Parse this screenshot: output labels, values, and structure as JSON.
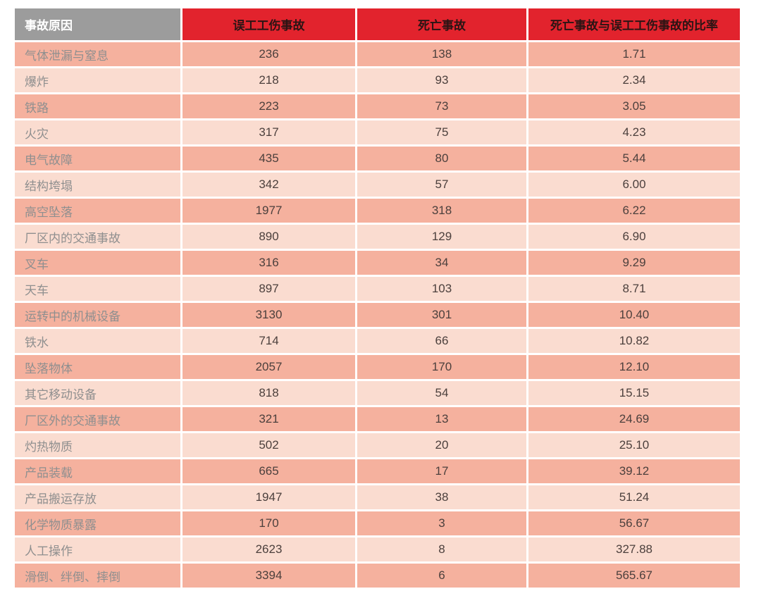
{
  "colors": {
    "header_gray": "#9c9c9c",
    "header_red": "#e2232d",
    "row_dark": "#f5b19e",
    "row_light": "#fadcd0",
    "header_gray_text": "#ffffff",
    "header_red_text": "#2b1414",
    "cause_text": "#8f8f8f",
    "number_text": "#4c403d",
    "page_bg": "#ffffff"
  },
  "table": {
    "columns": [
      "事故原因",
      "误工工伤事故",
      "死亡事故",
      "死亡事故与误工工伤事故的比率"
    ],
    "rows": [
      {
        "cause": "气体泄漏与窒息",
        "lost_time": "236",
        "fatal": "138",
        "ratio": "1.71"
      },
      {
        "cause": "爆炸",
        "lost_time": "218",
        "fatal": "93",
        "ratio": "2.34"
      },
      {
        "cause": "铁路",
        "lost_time": "223",
        "fatal": "73",
        "ratio": "3.05"
      },
      {
        "cause": "火灾",
        "lost_time": "317",
        "fatal": "75",
        "ratio": "4.23"
      },
      {
        "cause": "电气故障",
        "lost_time": "435",
        "fatal": "80",
        "ratio": "5.44"
      },
      {
        "cause": "结构垮塌",
        "lost_time": "342",
        "fatal": "57",
        "ratio": "6.00"
      },
      {
        "cause": "高空坠落",
        "lost_time": "1977",
        "fatal": "318",
        "ratio": "6.22"
      },
      {
        "cause": "厂区内的交通事故",
        "lost_time": "890",
        "fatal": "129",
        "ratio": "6.90"
      },
      {
        "cause": "叉车",
        "lost_time": "316",
        "fatal": "34",
        "ratio": "9.29"
      },
      {
        "cause": "天车",
        "lost_time": "897",
        "fatal": "103",
        "ratio": "8.71"
      },
      {
        "cause": "运转中的机械设备",
        "lost_time": "3130",
        "fatal": "301",
        "ratio": "10.40"
      },
      {
        "cause": "铁水",
        "lost_time": "714",
        "fatal": "66",
        "ratio": "10.82"
      },
      {
        "cause": "坠落物体",
        "lost_time": "2057",
        "fatal": "170",
        "ratio": "12.10"
      },
      {
        "cause": "其它移动设备",
        "lost_time": "818",
        "fatal": "54",
        "ratio": "15.15"
      },
      {
        "cause": "厂区外的交通事故",
        "lost_time": "321",
        "fatal": "13",
        "ratio": "24.69"
      },
      {
        "cause": "灼热物质",
        "lost_time": "502",
        "fatal": "20",
        "ratio": "25.10"
      },
      {
        "cause": "产品装载",
        "lost_time": "665",
        "fatal": "17",
        "ratio": "39.12"
      },
      {
        "cause": "产品搬运存放",
        "lost_time": "1947",
        "fatal": "38",
        "ratio": "51.24"
      },
      {
        "cause": "化学物质暴露",
        "lost_time": "170",
        "fatal": "3",
        "ratio": "56.67"
      },
      {
        "cause": "人工操作",
        "lost_time": "2623",
        "fatal": "8",
        "ratio": "327.88"
      },
      {
        "cause": "滑倒、绊倒、摔倒",
        "lost_time": "3394",
        "fatal": "6",
        "ratio": "565.67"
      }
    ]
  },
  "chart_data": {
    "type": "table",
    "title": "",
    "columns": [
      "事故原因",
      "误工工伤事故",
      "死亡事故",
      "死亡事故与误工工伤事故的比率"
    ],
    "rows": [
      [
        "气体泄漏与窒息",
        236,
        138,
        1.71
      ],
      [
        "爆炸",
        218,
        93,
        2.34
      ],
      [
        "铁路",
        223,
        73,
        3.05
      ],
      [
        "火灾",
        317,
        75,
        4.23
      ],
      [
        "电气故障",
        435,
        80,
        5.44
      ],
      [
        "结构垮塌",
        342,
        57,
        6.0
      ],
      [
        "高空坠落",
        1977,
        318,
        6.22
      ],
      [
        "厂区内的交通事故",
        890,
        129,
        6.9
      ],
      [
        "叉车",
        316,
        34,
        9.29
      ],
      [
        "天车",
        897,
        103,
        8.71
      ],
      [
        "运转中的机械设备",
        3130,
        301,
        10.4
      ],
      [
        "铁水",
        714,
        66,
        10.82
      ],
      [
        "坠落物体",
        2057,
        170,
        12.1
      ],
      [
        "其它移动设备",
        818,
        54,
        15.15
      ],
      [
        "厂区外的交通事故",
        321,
        13,
        24.69
      ],
      [
        "灼热物质",
        502,
        20,
        25.1
      ],
      [
        "产品装载",
        665,
        17,
        39.12
      ],
      [
        "产品搬运存放",
        1947,
        38,
        51.24
      ],
      [
        "化学物质暴露",
        170,
        3,
        56.67
      ],
      [
        "人工操作",
        2623,
        8,
        327.88
      ],
      [
        "滑倒、绊倒、摔倒",
        3394,
        6,
        565.67
      ]
    ]
  }
}
